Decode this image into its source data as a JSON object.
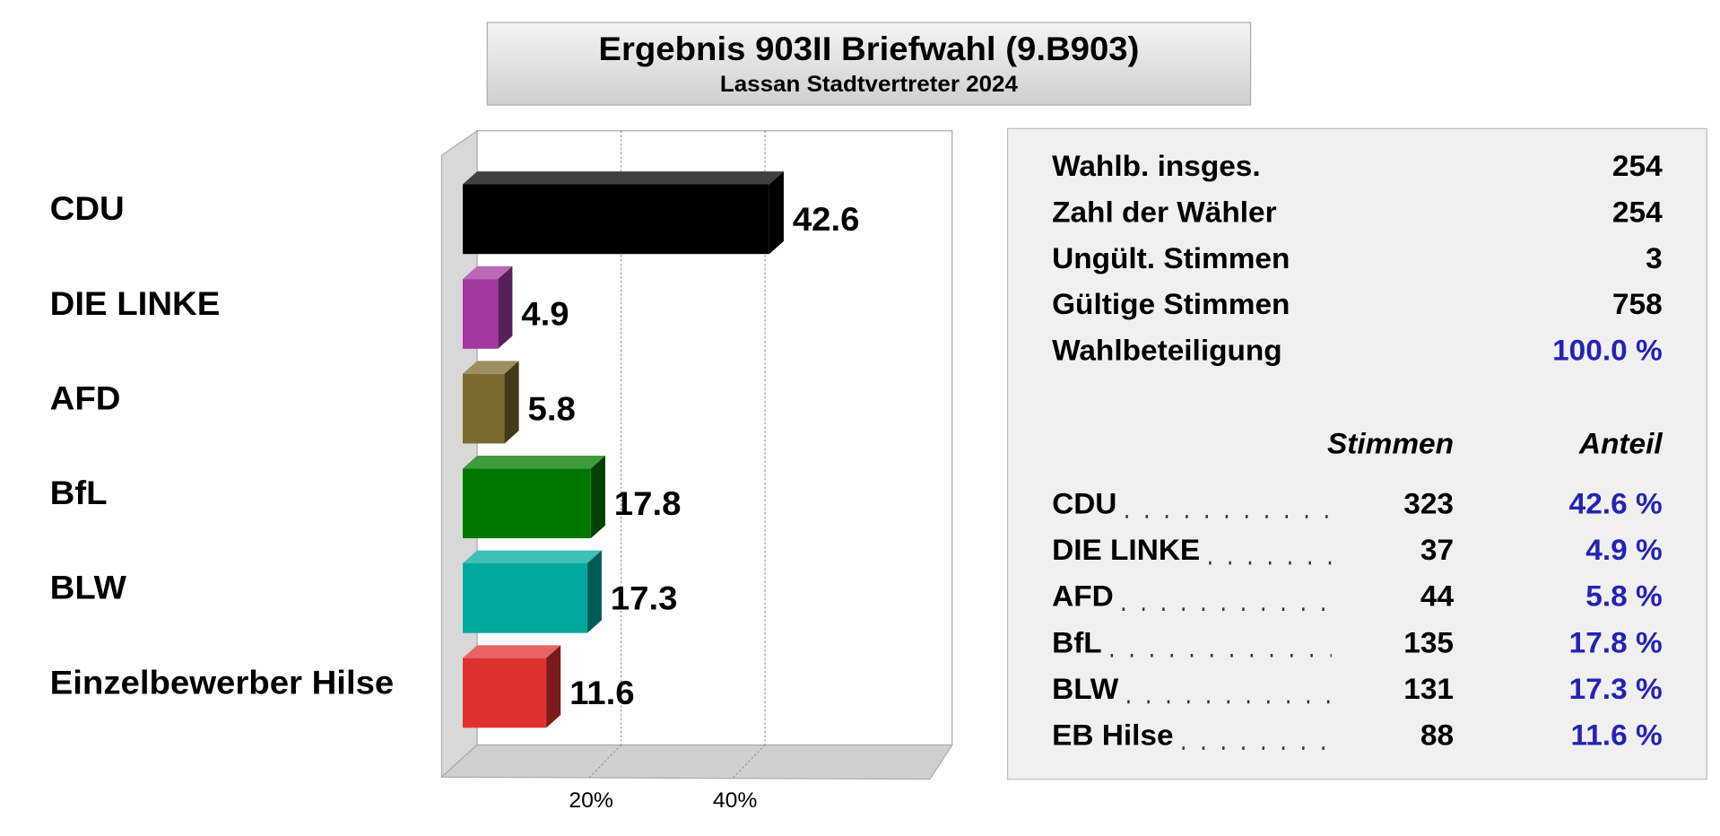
{
  "chart_data": {
    "type": "hbar",
    "title": "Ergebnis 903II Briefwahl (9.B903)",
    "subtitle": "Lassan Stadtvertreter 2024",
    "categories": [
      "CDU",
      "DIE LINKE",
      "AFD",
      "BfL",
      "BLW",
      "Einzelbewerber Hilse"
    ],
    "values": [
      42.6,
      4.9,
      5.8,
      17.8,
      17.3,
      11.6
    ],
    "colors": [
      "#000000",
      "#a038a0",
      "#7a6a30",
      "#007800",
      "#00a8a0",
      "#e03030"
    ],
    "xlim": [
      0,
      66
    ],
    "xticks": [
      {
        "value": 20,
        "label": "20%"
      },
      {
        "value": 40,
        "label": "40%"
      }
    ],
    "grid": true
  },
  "summary": {
    "rows": [
      [
        "Wahlb. insges.",
        "254"
      ],
      [
        "Zahl der Wähler",
        "254"
      ],
      [
        "Ungült. Stimmen",
        "3"
      ],
      [
        "Gültige Stimmen",
        "758"
      ],
      [
        "Wahlbeteiligung",
        "100.0 %"
      ]
    ]
  },
  "results": {
    "headers": [
      "Stimmen",
      "Anteil"
    ],
    "rows": [
      [
        "CDU",
        "323",
        "42.6 %"
      ],
      [
        "DIE LINKE",
        "37",
        "4.9 %"
      ],
      [
        "AFD",
        "44",
        "5.8 %"
      ],
      [
        "BfL",
        "135",
        "17.8 %"
      ],
      [
        "BLW",
        "131",
        "17.3 %"
      ],
      [
        "EB Hilse",
        "88",
        "11.6 %"
      ]
    ]
  }
}
